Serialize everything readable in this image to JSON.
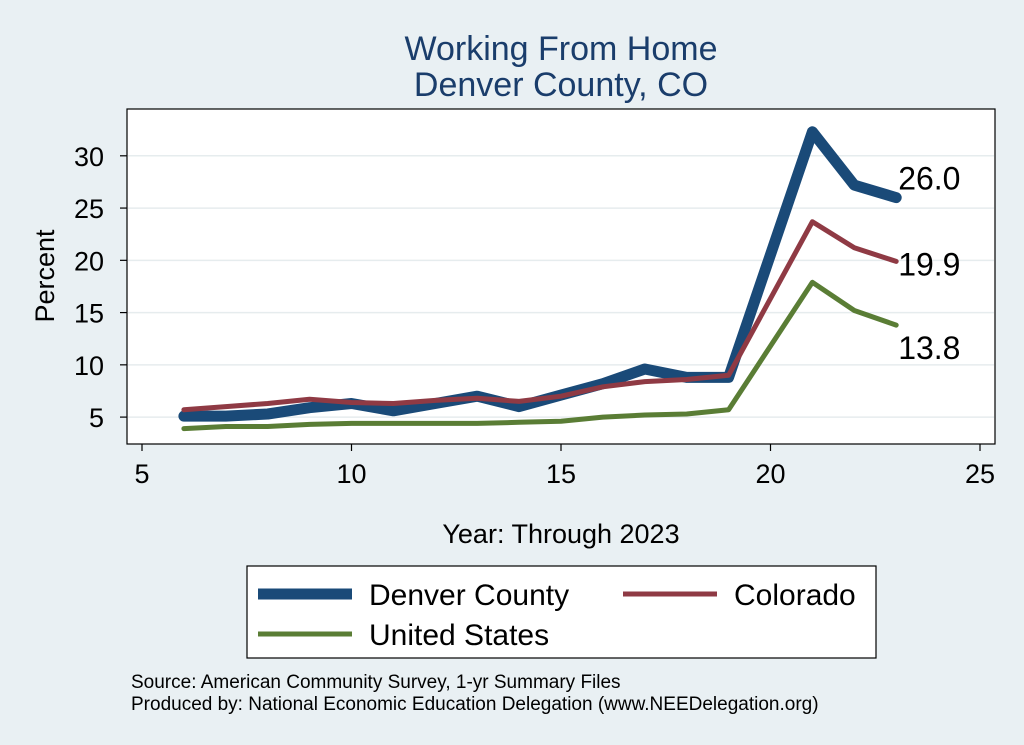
{
  "chart_data": {
    "type": "line",
    "title": [
      "Working From Home",
      "Denver County, CO"
    ],
    "xlabel": "Year: Through 2023",
    "ylabel": "Percent",
    "xlim": [
      5,
      25
    ],
    "ylim": [
      3,
      34
    ],
    "xticks": [
      5,
      10,
      15,
      20,
      25
    ],
    "yticks": [
      5,
      10,
      15,
      20,
      25,
      30
    ],
    "grid": true,
    "legend_position": "bottom",
    "series": [
      {
        "name": "Denver County",
        "color": "#1a4a78",
        "x": [
          6,
          7,
          8,
          9,
          10,
          11,
          12,
          13,
          14,
          15,
          16,
          17,
          18,
          19,
          21,
          22,
          23
        ],
        "y": [
          5.1,
          5.1,
          5.3,
          5.9,
          6.3,
          5.6,
          6.3,
          7.0,
          6.0,
          7.1,
          8.2,
          9.6,
          8.8,
          8.8,
          32.3,
          27.2,
          26.0
        ],
        "end_label": "26.0"
      },
      {
        "name": "Colorado",
        "color": "#8f3a44",
        "x": [
          6,
          7,
          8,
          9,
          10,
          11,
          12,
          13,
          14,
          15,
          16,
          17,
          18,
          19,
          21,
          22,
          23
        ],
        "y": [
          5.7,
          6.0,
          6.3,
          6.7,
          6.4,
          6.3,
          6.6,
          6.8,
          6.5,
          7.0,
          7.9,
          8.4,
          8.6,
          9.0,
          23.7,
          21.2,
          19.9
        ],
        "end_label": "19.9"
      },
      {
        "name": "United States",
        "color": "#5a7d35",
        "x": [
          6,
          7,
          8,
          9,
          10,
          11,
          12,
          13,
          14,
          15,
          16,
          17,
          18,
          19,
          21,
          22,
          23
        ],
        "y": [
          3.9,
          4.1,
          4.1,
          4.3,
          4.4,
          4.4,
          4.4,
          4.4,
          4.5,
          4.6,
          5.0,
          5.2,
          5.3,
          5.7,
          17.9,
          15.2,
          13.8
        ],
        "end_label": "13.8"
      }
    ],
    "notes": [
      "Source: American Community Survey, 1-yr Summary Files",
      "Produced by: National Economic Education Delegation (www.NEEDelegation.org)"
    ]
  }
}
